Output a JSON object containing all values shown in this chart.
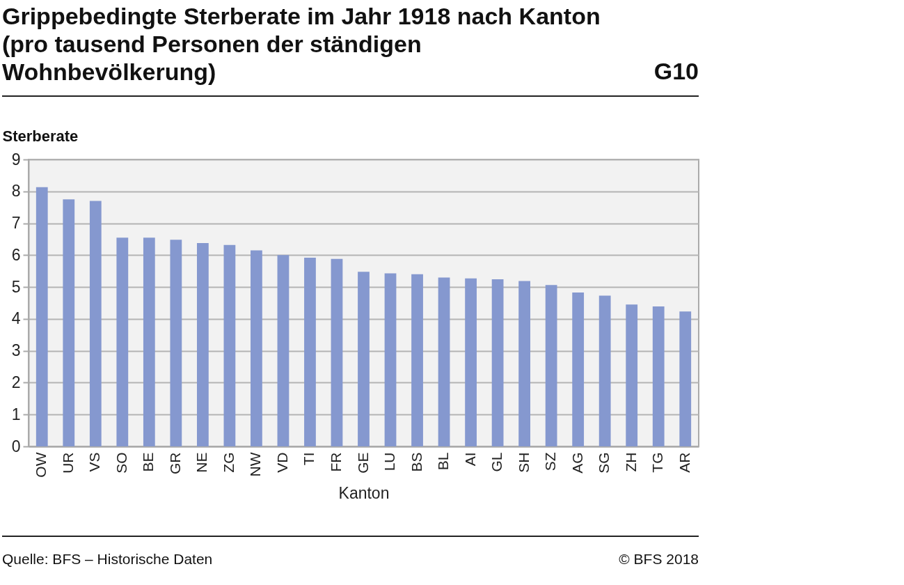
{
  "chart_data": {
    "type": "bar",
    "title": "Grippebedingte Sterberate im Jahr 1918 nach Kanton (pro tausend Personen der ständigen Wohnbevölkerung)",
    "ylabel": "Sterberate",
    "xlabel": "Kanton",
    "categories": [
      "OW",
      "UR",
      "VS",
      "SO",
      "BE",
      "GR",
      "NE",
      "ZG",
      "NW",
      "VD",
      "TI",
      "FR",
      "GE",
      "LU",
      "BS",
      "BL",
      "AI",
      "GL",
      "SH",
      "SZ",
      "AG",
      "SG",
      "ZH",
      "TG",
      "AR"
    ],
    "values": [
      8.13,
      7.75,
      7.7,
      6.55,
      6.55,
      6.48,
      6.38,
      6.32,
      6.15,
      6.0,
      5.92,
      5.88,
      5.48,
      5.43,
      5.4,
      5.3,
      5.27,
      5.24,
      5.19,
      5.06,
      4.83,
      4.73,
      4.45,
      4.39,
      4.23
    ],
    "color": "#8598cf",
    "ylim": [
      0,
      9
    ],
    "yticks": [
      0,
      1,
      2,
      3,
      4,
      5,
      6,
      7,
      8,
      9
    ],
    "grid": "y",
    "annotations": [
      "G10",
      "Quelle: BFS – Historische Daten",
      "© BFS 2018"
    ]
  }
}
